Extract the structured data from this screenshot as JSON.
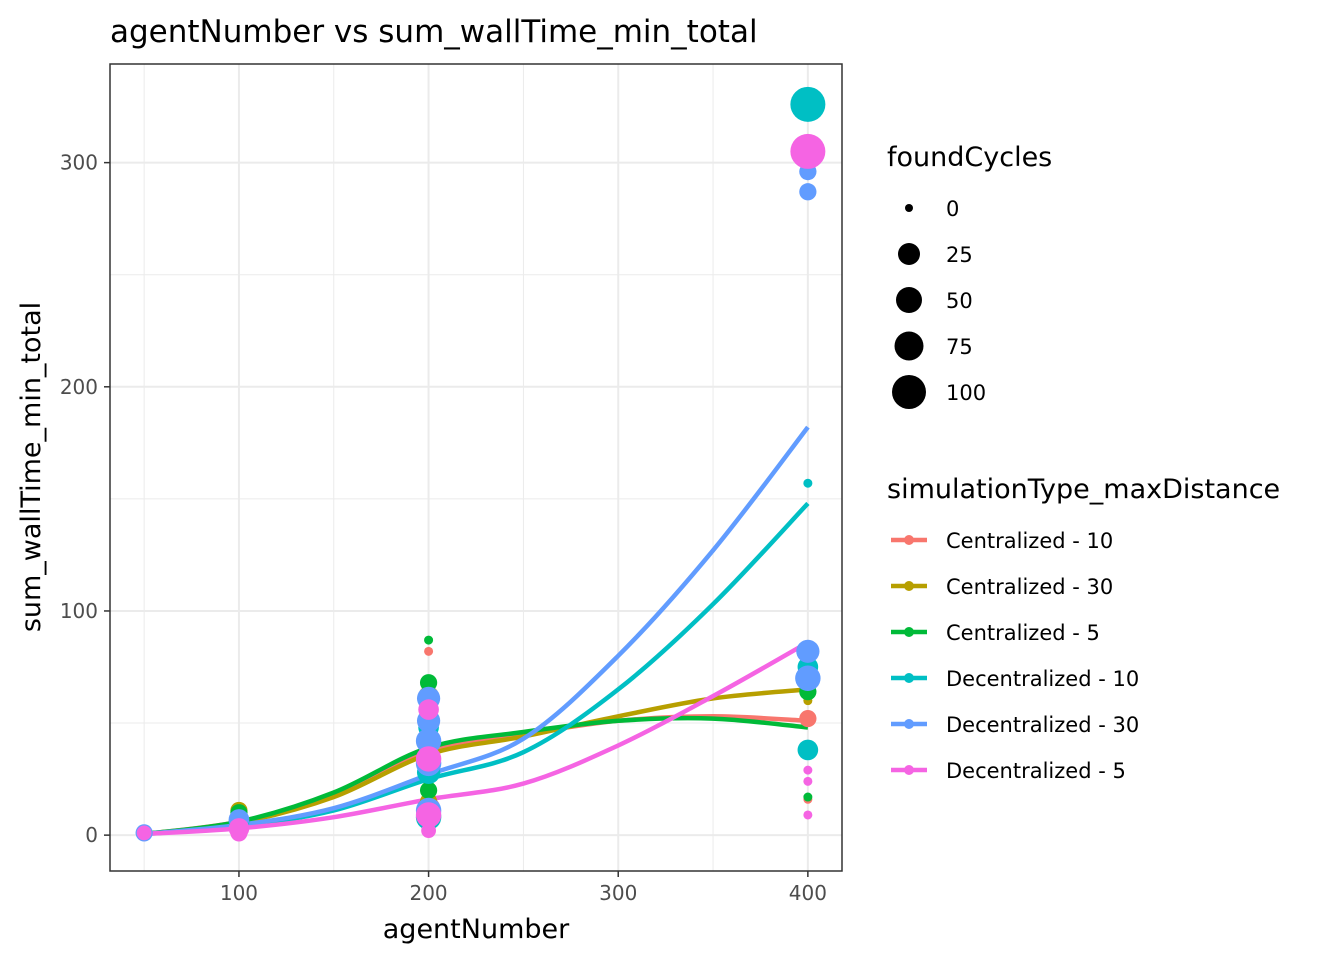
{
  "chart_data": {
    "type": "scatter",
    "title": "agentNumber  vs  sum_wallTime_min_total",
    "xlabel": "agentNumber",
    "ylabel": "sum_wallTime_min_total",
    "xlim": [
      32,
      418
    ],
    "ylim": [
      -16,
      344
    ],
    "x_ticks": [
      100,
      200,
      300,
      400
    ],
    "x_tick_labels": [
      "100",
      "200",
      "300",
      "400"
    ],
    "y_ticks": [
      0,
      100,
      200,
      300
    ],
    "y_tick_labels": [
      "0",
      "100",
      "200",
      "300"
    ],
    "grid": true,
    "smooth_lines": true,
    "size_legend": {
      "title": "foundCycles",
      "values": [
        0,
        25,
        50,
        75,
        100
      ],
      "labels": [
        "0",
        "25",
        "50",
        "75",
        "100"
      ]
    },
    "color_legend": {
      "title": "simulationType_maxDistance",
      "placement": "right"
    },
    "series": [
      {
        "name": "Centralized - 10",
        "color": "#F8766D",
        "points": [
          {
            "x": 50,
            "y": 1,
            "size": 5
          },
          {
            "x": 100,
            "y": 8,
            "size": 10
          },
          {
            "x": 100,
            "y": 4,
            "size": 5
          },
          {
            "x": 200,
            "y": 82,
            "size": 0
          },
          {
            "x": 200,
            "y": 60,
            "size": 10
          },
          {
            "x": 200,
            "y": 40,
            "size": 20
          },
          {
            "x": 200,
            "y": 12,
            "size": 30
          },
          {
            "x": 400,
            "y": 52,
            "size": 10
          },
          {
            "x": 400,
            "y": 16,
            "size": 0
          }
        ],
        "smooth": [
          {
            "x": 50,
            "y": 0.5
          },
          {
            "x": 100,
            "y": 6
          },
          {
            "x": 150,
            "y": 18
          },
          {
            "x": 200,
            "y": 38
          },
          {
            "x": 250,
            "y": 45
          },
          {
            "x": 300,
            "y": 51
          },
          {
            "x": 350,
            "y": 53
          },
          {
            "x": 400,
            "y": 51
          }
        ]
      },
      {
        "name": "Centralized - 30",
        "color": "#B79F00",
        "points": [
          {
            "x": 50,
            "y": 1,
            "size": 5
          },
          {
            "x": 100,
            "y": 11,
            "size": 10
          },
          {
            "x": 100,
            "y": 6,
            "size": 5
          },
          {
            "x": 200,
            "y": 62,
            "size": 20
          },
          {
            "x": 200,
            "y": 40,
            "size": 20
          },
          {
            "x": 200,
            "y": 15,
            "size": 10
          },
          {
            "x": 400,
            "y": 71,
            "size": 10
          },
          {
            "x": 400,
            "y": 60,
            "size": 0
          }
        ],
        "smooth": [
          {
            "x": 50,
            "y": 0.5
          },
          {
            "x": 100,
            "y": 5.5
          },
          {
            "x": 150,
            "y": 17
          },
          {
            "x": 200,
            "y": 36
          },
          {
            "x": 250,
            "y": 44
          },
          {
            "x": 300,
            "y": 53
          },
          {
            "x": 350,
            "y": 61
          },
          {
            "x": 400,
            "y": 65
          }
        ]
      },
      {
        "name": "Centralized - 5",
        "color": "#00BA38",
        "points": [
          {
            "x": 50,
            "y": 1,
            "size": 5
          },
          {
            "x": 100,
            "y": 10,
            "size": 10
          },
          {
            "x": 200,
            "y": 87,
            "size": 0
          },
          {
            "x": 200,
            "y": 68,
            "size": 10
          },
          {
            "x": 200,
            "y": 58,
            "size": 10
          },
          {
            "x": 200,
            "y": 20,
            "size": 10
          },
          {
            "x": 400,
            "y": 81,
            "size": 0
          },
          {
            "x": 400,
            "y": 64,
            "size": 10
          },
          {
            "x": 400,
            "y": 17,
            "size": 0
          }
        ],
        "smooth": [
          {
            "x": 50,
            "y": 0.5
          },
          {
            "x": 100,
            "y": 6
          },
          {
            "x": 150,
            "y": 19
          },
          {
            "x": 200,
            "y": 39
          },
          {
            "x": 250,
            "y": 46
          },
          {
            "x": 300,
            "y": 51
          },
          {
            "x": 350,
            "y": 52
          },
          {
            "x": 400,
            "y": 48
          }
        ]
      },
      {
        "name": "Decentralized - 10",
        "color": "#00BFC4",
        "points": [
          {
            "x": 50,
            "y": 1,
            "size": 5
          },
          {
            "x": 100,
            "y": 6,
            "size": 20
          },
          {
            "x": 200,
            "y": 48,
            "size": 20
          },
          {
            "x": 200,
            "y": 28,
            "size": 30
          },
          {
            "x": 200,
            "y": 8,
            "size": 40
          },
          {
            "x": 400,
            "y": 326,
            "size": 100
          },
          {
            "x": 400,
            "y": 157,
            "size": 0
          },
          {
            "x": 400,
            "y": 75,
            "size": 20
          },
          {
            "x": 400,
            "y": 38,
            "size": 20
          }
        ],
        "smooth": [
          {
            "x": 50,
            "y": 0.5
          },
          {
            "x": 100,
            "y": 4
          },
          {
            "x": 150,
            "y": 11
          },
          {
            "x": 200,
            "y": 25
          },
          {
            "x": 250,
            "y": 37
          },
          {
            "x": 300,
            "y": 65
          },
          {
            "x": 350,
            "y": 103
          },
          {
            "x": 400,
            "y": 148
          }
        ]
      },
      {
        "name": "Decentralized - 30",
        "color": "#619CFF",
        "points": [
          {
            "x": 50,
            "y": 1,
            "size": 10
          },
          {
            "x": 100,
            "y": 7,
            "size": 20
          },
          {
            "x": 200,
            "y": 61,
            "size": 30
          },
          {
            "x": 200,
            "y": 51,
            "size": 30
          },
          {
            "x": 200,
            "y": 42,
            "size": 40
          },
          {
            "x": 200,
            "y": 32,
            "size": 40
          },
          {
            "x": 200,
            "y": 11,
            "size": 40
          },
          {
            "x": 400,
            "y": 296,
            "size": 10
          },
          {
            "x": 400,
            "y": 287,
            "size": 10
          },
          {
            "x": 400,
            "y": 82,
            "size": 30
          },
          {
            "x": 400,
            "y": 70,
            "size": 40
          }
        ],
        "smooth": [
          {
            "x": 50,
            "y": 0.5
          },
          {
            "x": 100,
            "y": 4.5
          },
          {
            "x": 150,
            "y": 12
          },
          {
            "x": 200,
            "y": 27
          },
          {
            "x": 250,
            "y": 43
          },
          {
            "x": 300,
            "y": 80
          },
          {
            "x": 350,
            "y": 127
          },
          {
            "x": 400,
            "y": 182
          }
        ]
      },
      {
        "name": "Decentralized - 5",
        "color": "#F564E3",
        "points": [
          {
            "x": 50,
            "y": 1,
            "size": 5
          },
          {
            "x": 100,
            "y": 3,
            "size": 20
          },
          {
            "x": 100,
            "y": 1,
            "size": 10
          },
          {
            "x": 200,
            "y": 56,
            "size": 20
          },
          {
            "x": 200,
            "y": 34,
            "size": 40
          },
          {
            "x": 200,
            "y": 9,
            "size": 40
          },
          {
            "x": 200,
            "y": 2,
            "size": 5
          },
          {
            "x": 400,
            "y": 305,
            "size": 100
          },
          {
            "x": 400,
            "y": 29,
            "size": 0
          },
          {
            "x": 400,
            "y": 24,
            "size": 0
          },
          {
            "x": 400,
            "y": 9,
            "size": 0
          }
        ],
        "smooth": [
          {
            "x": 50,
            "y": 0.5
          },
          {
            "x": 100,
            "y": 3
          },
          {
            "x": 150,
            "y": 8
          },
          {
            "x": 200,
            "y": 16
          },
          {
            "x": 250,
            "y": 23
          },
          {
            "x": 300,
            "y": 40
          },
          {
            "x": 350,
            "y": 62
          },
          {
            "x": 400,
            "y": 86
          }
        ]
      }
    ]
  }
}
